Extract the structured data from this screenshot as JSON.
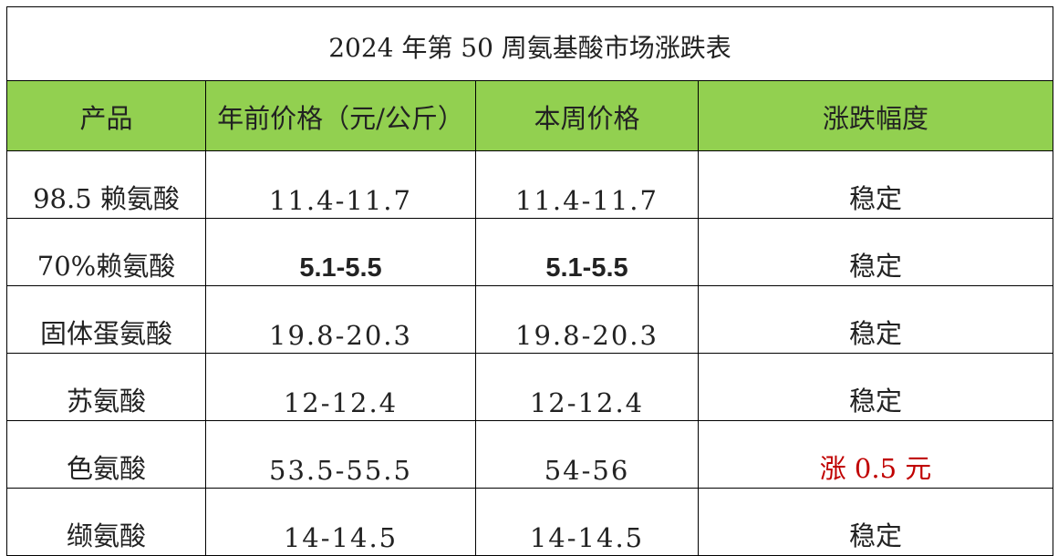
{
  "table": {
    "title": "2024 年第 50 周氨基酸市场涨跌表",
    "header": [
      "产品",
      "年前价格（元/公斤）",
      "本周价格",
      "涨跌幅度"
    ],
    "rows": [
      [
        "98.5 赖氨酸",
        "11.4-11.7",
        "11.4-11.7",
        "稳定"
      ],
      [
        "70%赖氨酸",
        "5.1-5.5",
        "5.1-5.5",
        "稳定"
      ],
      [
        "固体蛋氨酸",
        "19.8-20.3",
        "19.8-20.3",
        "稳定"
      ],
      [
        "苏氨酸",
        "12-12.4",
        "12-12.4",
        "稳定"
      ],
      [
        "色氨酸",
        "53.5-55.5",
        "54-56",
        "涨 0.5 元"
      ],
      [
        "缬氨酸",
        "14-14.5",
        "14-14.5",
        "稳定"
      ]
    ]
  }
}
